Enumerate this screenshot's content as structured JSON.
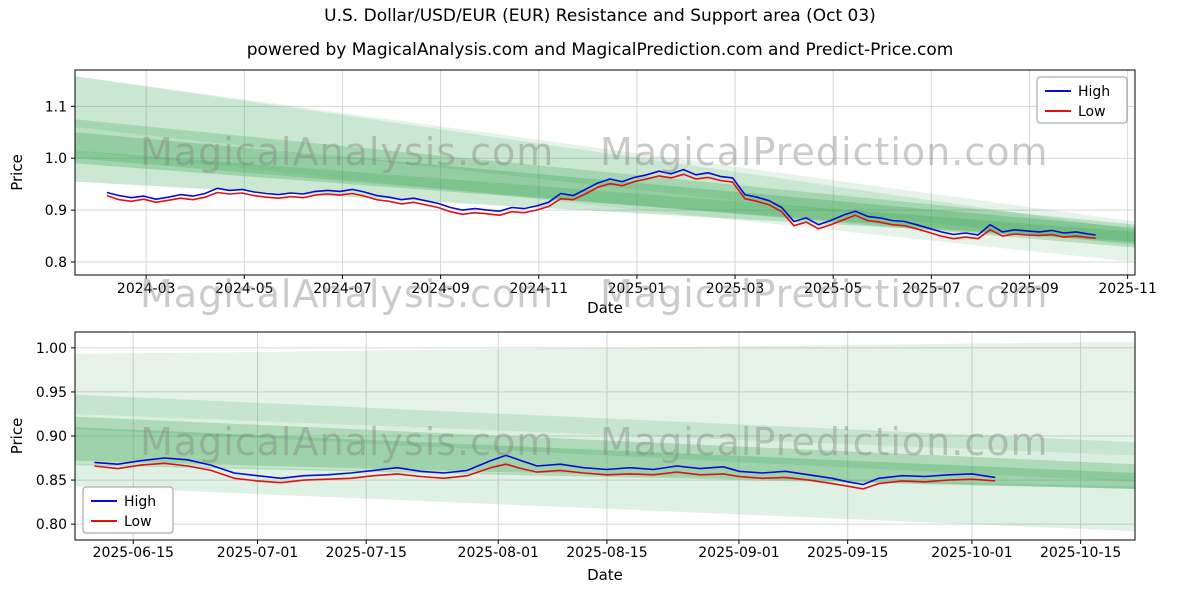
{
  "page": {
    "title": "U.S. Dollar/USD/EUR (EUR) Resistance and Support area (Oct 03)",
    "subtitle": "powered by MagicalAnalysis.com and MagicalPrediction.com and Predict-Price.com"
  },
  "watermarks": {
    "left": "MagicalAnalysis.com",
    "right": "MagicalPrediction.com"
  },
  "colors": {
    "high": "#0b0bd1",
    "low": "#e01212",
    "band": "#3aa655",
    "grid": "#d6d6d6",
    "axis": "#000000"
  },
  "chart_data": [
    {
      "type": "line",
      "xlabel": "Date",
      "ylabel": "Price",
      "xlim": [
        0.55,
        22.15
      ],
      "ylim": [
        0.775,
        1.17
      ],
      "xticks": {
        "values": [
          2,
          4,
          6,
          8,
          10,
          12,
          14,
          16,
          18,
          20,
          22
        ],
        "labels": [
          "2024-03",
          "2024-05",
          "2024-07",
          "2024-09",
          "2024-11",
          "2025-01",
          "2025-03",
          "2025-05",
          "2025-07",
          "2025-09",
          "2025-11"
        ]
      },
      "yticks": {
        "values": [
          0.8,
          0.9,
          1.0,
          1.1
        ],
        "labels": [
          "0.8",
          "0.9",
          "1.0",
          "1.1"
        ]
      },
      "legend": {
        "position": "top-right"
      },
      "series": [
        {
          "name": "High",
          "color_key": "high"
        },
        {
          "name": "Low",
          "color_key": "low"
        }
      ],
      "columns": [
        "date_index_months_from_2024_01",
        "high",
        "low"
      ],
      "bands": [
        [
          0.55,
          1.158,
          1.015,
          22.15,
          0.878,
          0.8,
          0.13
        ],
        [
          0.55,
          1.158,
          1.06,
          22.15,
          0.862,
          0.832,
          0.16
        ],
        [
          0.55,
          1.075,
          1.0,
          22.15,
          0.872,
          0.828,
          0.26
        ],
        [
          0.55,
          1.05,
          0.99,
          22.15,
          0.866,
          0.836,
          0.3
        ],
        [
          0.55,
          1.015,
          0.955,
          22.15,
          0.858,
          0.84,
          0.26
        ]
      ],
      "points": [
        [
          1.2,
          0.934,
          0.928
        ],
        [
          1.45,
          0.928,
          0.92
        ],
        [
          1.7,
          0.924,
          0.917
        ],
        [
          1.95,
          0.927,
          0.921
        ],
        [
          2.2,
          0.921,
          0.915
        ],
        [
          2.45,
          0.925,
          0.919
        ],
        [
          2.7,
          0.93,
          0.923
        ],
        [
          2.95,
          0.927,
          0.92
        ],
        [
          3.2,
          0.932,
          0.925
        ],
        [
          3.45,
          0.942,
          0.934
        ],
        [
          3.7,
          0.938,
          0.931
        ],
        [
          3.95,
          0.94,
          0.933
        ],
        [
          4.2,
          0.935,
          0.928
        ],
        [
          4.45,
          0.932,
          0.925
        ],
        [
          4.7,
          0.93,
          0.923
        ],
        [
          4.95,
          0.933,
          0.926
        ],
        [
          5.2,
          0.931,
          0.924
        ],
        [
          5.45,
          0.936,
          0.929
        ],
        [
          5.7,
          0.938,
          0.931
        ],
        [
          5.95,
          0.936,
          0.929
        ],
        [
          6.2,
          0.94,
          0.932
        ],
        [
          6.45,
          0.935,
          0.927
        ],
        [
          6.7,
          0.928,
          0.92
        ],
        [
          6.95,
          0.925,
          0.917
        ],
        [
          7.2,
          0.92,
          0.912
        ],
        [
          7.45,
          0.923,
          0.915
        ],
        [
          7.7,
          0.918,
          0.91
        ],
        [
          7.95,
          0.913,
          0.905
        ],
        [
          8.2,
          0.905,
          0.897
        ],
        [
          8.45,
          0.9,
          0.892
        ],
        [
          8.7,
          0.903,
          0.895
        ],
        [
          8.95,
          0.9,
          0.893
        ],
        [
          9.2,
          0.898,
          0.89
        ],
        [
          9.45,
          0.905,
          0.897
        ],
        [
          9.7,
          0.903,
          0.895
        ],
        [
          9.95,
          0.908,
          0.9
        ],
        [
          10.2,
          0.915,
          0.907
        ],
        [
          10.45,
          0.932,
          0.922
        ],
        [
          10.7,
          0.928,
          0.92
        ],
        [
          10.95,
          0.94,
          0.931
        ],
        [
          11.2,
          0.952,
          0.944
        ],
        [
          11.45,
          0.96,
          0.951
        ],
        [
          11.7,
          0.955,
          0.947
        ],
        [
          11.95,
          0.963,
          0.955
        ],
        [
          12.2,
          0.968,
          0.96
        ],
        [
          12.45,
          0.975,
          0.966
        ],
        [
          12.7,
          0.97,
          0.962
        ],
        [
          12.95,
          0.978,
          0.969
        ],
        [
          13.2,
          0.968,
          0.96
        ],
        [
          13.45,
          0.972,
          0.963
        ],
        [
          13.7,
          0.965,
          0.957
        ],
        [
          13.95,
          0.962,
          0.954
        ],
        [
          14.2,
          0.93,
          0.922
        ],
        [
          14.45,
          0.925,
          0.917
        ],
        [
          14.7,
          0.918,
          0.91
        ],
        [
          14.95,
          0.905,
          0.897
        ],
        [
          15.2,
          0.878,
          0.87
        ],
        [
          15.45,
          0.885,
          0.877
        ],
        [
          15.7,
          0.872,
          0.864
        ],
        [
          15.95,
          0.88,
          0.872
        ],
        [
          16.2,
          0.89,
          0.881
        ],
        [
          16.45,
          0.898,
          0.89
        ],
        [
          16.7,
          0.888,
          0.88
        ],
        [
          16.95,
          0.885,
          0.877
        ],
        [
          17.2,
          0.88,
          0.872
        ],
        [
          17.45,
          0.878,
          0.87
        ],
        [
          17.7,
          0.872,
          0.864
        ],
        [
          17.95,
          0.865,
          0.857
        ],
        [
          18.2,
          0.858,
          0.85
        ],
        [
          18.45,
          0.853,
          0.845
        ],
        [
          18.7,
          0.856,
          0.848
        ],
        [
          18.95,
          0.852,
          0.845
        ],
        [
          19.2,
          0.872,
          0.862
        ],
        [
          19.45,
          0.858,
          0.85
        ],
        [
          19.7,
          0.862,
          0.854
        ],
        [
          19.95,
          0.86,
          0.852
        ],
        [
          20.2,
          0.858,
          0.851
        ],
        [
          20.45,
          0.861,
          0.853
        ],
        [
          20.7,
          0.856,
          0.848
        ],
        [
          20.95,
          0.858,
          0.85
        ],
        [
          21.2,
          0.854,
          0.847
        ],
        [
          21.35,
          0.852,
          0.846
        ]
      ]
    },
    {
      "type": "line",
      "xlabel": "Date",
      "ylabel": "Price",
      "xlim": [
        6.5,
        143
      ],
      "ylim": [
        0.782,
        1.018
      ],
      "xticks": {
        "values": [
          14,
          30,
          44,
          61,
          75,
          92,
          106,
          122,
          136
        ],
        "labels": [
          "2025-06-15",
          "2025-07-01",
          "2025-07-15",
          "2025-08-01",
          "2025-08-15",
          "2025-09-01",
          "2025-09-15",
          "2025-10-01",
          "2025-10-15"
        ]
      },
      "yticks": {
        "values": [
          0.8,
          0.85,
          0.9,
          0.95,
          1.0
        ],
        "labels": [
          "0.80",
          "0.85",
          "0.90",
          "0.95",
          "1.00"
        ]
      },
      "legend": {
        "position": "bottom-left"
      },
      "series": [
        {
          "name": "High",
          "color_key": "high"
        },
        {
          "name": "Low",
          "color_key": "low"
        }
      ],
      "columns": [
        "date_index_days_from_2025_06_01",
        "high",
        "low"
      ],
      "bands": [
        [
          6.5,
          0.993,
          0.925,
          143,
          1.007,
          0.878,
          0.13
        ],
        [
          6.5,
          0.947,
          0.908,
          143,
          0.893,
          0.848,
          0.18
        ],
        [
          6.5,
          0.922,
          0.872,
          143,
          0.868,
          0.84,
          0.28
        ],
        [
          6.5,
          0.91,
          0.867,
          143,
          0.858,
          0.84,
          0.3
        ],
        [
          6.5,
          0.868,
          0.843,
          143,
          0.843,
          0.792,
          0.16
        ]
      ],
      "points": [
        [
          9,
          0.87,
          0.866
        ],
        [
          12,
          0.868,
          0.863
        ],
        [
          15,
          0.872,
          0.867
        ],
        [
          18,
          0.875,
          0.869
        ],
        [
          21,
          0.873,
          0.866
        ],
        [
          24,
          0.867,
          0.861
        ],
        [
          27,
          0.858,
          0.852
        ],
        [
          30,
          0.855,
          0.849
        ],
        [
          33,
          0.852,
          0.847
        ],
        [
          36,
          0.855,
          0.85
        ],
        [
          39,
          0.856,
          0.851
        ],
        [
          42,
          0.858,
          0.852
        ],
        [
          45,
          0.861,
          0.855
        ],
        [
          48,
          0.864,
          0.857
        ],
        [
          51,
          0.86,
          0.854
        ],
        [
          54,
          0.858,
          0.852
        ],
        [
          57,
          0.861,
          0.855
        ],
        [
          60,
          0.872,
          0.864
        ],
        [
          62,
          0.878,
          0.868
        ],
        [
          64,
          0.872,
          0.863
        ],
        [
          66,
          0.866,
          0.859
        ],
        [
          69,
          0.868,
          0.861
        ],
        [
          72,
          0.864,
          0.858
        ],
        [
          75,
          0.862,
          0.856
        ],
        [
          78,
          0.864,
          0.857
        ],
        [
          81,
          0.862,
          0.856
        ],
        [
          84,
          0.866,
          0.859
        ],
        [
          87,
          0.863,
          0.856
        ],
        [
          90,
          0.865,
          0.857
        ],
        [
          92,
          0.86,
          0.854
        ],
        [
          95,
          0.858,
          0.852
        ],
        [
          98,
          0.86,
          0.853
        ],
        [
          101,
          0.856,
          0.85
        ],
        [
          104,
          0.852,
          0.846
        ],
        [
          106,
          0.848,
          0.843
        ],
        [
          108,
          0.845,
          0.84
        ],
        [
          110,
          0.852,
          0.846
        ],
        [
          113,
          0.855,
          0.849
        ],
        [
          116,
          0.854,
          0.848
        ],
        [
          119,
          0.856,
          0.85
        ],
        [
          122,
          0.857,
          0.851
        ],
        [
          125,
          0.853,
          0.849
        ]
      ]
    }
  ]
}
